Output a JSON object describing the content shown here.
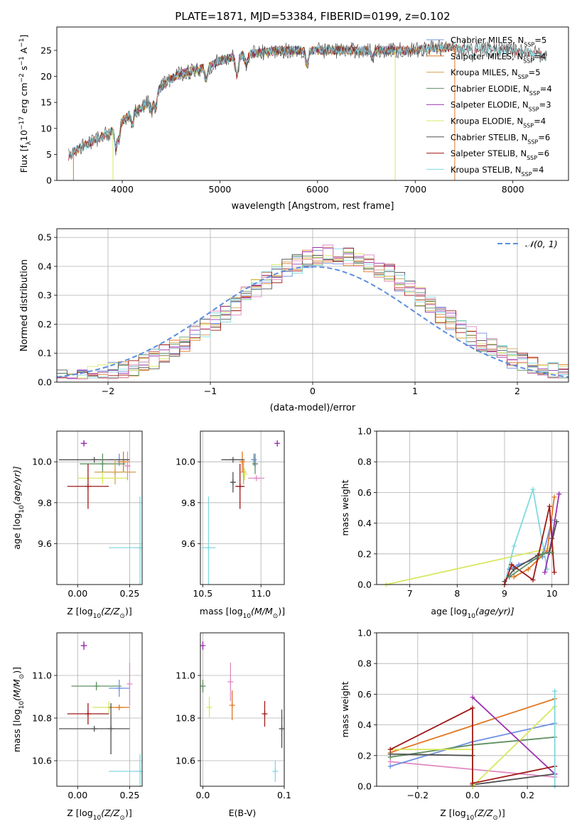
{
  "figure": {
    "title": "PLATE=1871, MJD=53384, FIBERID=0199, z=0.102"
  },
  "colors": {
    "Chabrier MILES": "#6f90e0",
    "Salpeter MILES": "#e07722",
    "Kroupa MILES": "#d4a050",
    "Chabrier ELODIE": "#5f9060",
    "Salpeter ELODIE": "#9a30b0",
    "Kroupa ELODIE": "#d8e860",
    "Chabrier STELIB": "#505050",
    "Salpeter STELIB": "#a01818",
    "Kroupa STELIB": "#80d8e0",
    "extra_pink": "#e088c0",
    "normal": "#5b8ee0"
  },
  "chart_data": [
    {
      "id": "spectrum",
      "type": "line",
      "title": "PLATE=1871, MJD=53384, FIBERID=0199, z=0.102",
      "xlabel": "wavelength [Angstrom, rest frame]",
      "ylabel_main": "Flux [f",
      "ylabel_sub": "λ",
      "ylabel_rest": "10",
      "ylabel_sup": "−17",
      "ylabel_tail": " erg cm",
      "ylabel_sup2": "−2",
      "ylabel_tail2": " s",
      "ylabel_sup3": "−1",
      "ylabel_tail3": " A",
      "ylabel_sup4": "−1",
      "ylabel_end": "]",
      "xlim": [
        3330,
        8570
      ],
      "ylim": [
        0,
        29.5
      ],
      "xticks": [
        "4000",
        "5000",
        "6000",
        "7000",
        "8000"
      ],
      "xtick_values": [
        4000,
        5000,
        6000,
        7000,
        8000
      ],
      "yticks": [
        "0",
        "5",
        "10",
        "15",
        "20",
        "25"
      ],
      "ytick_values": [
        0,
        5,
        10,
        15,
        20,
        25
      ],
      "continuum": [
        [
          3450,
          4.5
        ],
        [
          3500,
          5.5
        ],
        [
          3600,
          6.5
        ],
        [
          3700,
          7.5
        ],
        [
          3800,
          8.5
        ],
        [
          3900,
          9.5
        ],
        [
          4000,
          11.5
        ],
        [
          4100,
          13
        ],
        [
          4200,
          14
        ],
        [
          4300,
          15.5
        ],
        [
          4400,
          18
        ],
        [
          4500,
          19.5
        ],
        [
          4600,
          20.5
        ],
        [
          4700,
          21
        ],
        [
          4800,
          21.5
        ],
        [
          4900,
          22
        ],
        [
          5000,
          23
        ],
        [
          5200,
          24
        ],
        [
          5400,
          24.5
        ],
        [
          5600,
          25
        ],
        [
          5800,
          25
        ],
        [
          6000,
          25
        ],
        [
          6200,
          25
        ],
        [
          6400,
          25
        ],
        [
          6600,
          25
        ],
        [
          6800,
          25
        ],
        [
          7000,
          25
        ],
        [
          7200,
          25.5
        ],
        [
          7400,
          25.5
        ],
        [
          7600,
          25.5
        ],
        [
          7800,
          25
        ],
        [
          8000,
          25
        ],
        [
          8200,
          24.5
        ],
        [
          8350,
          24
        ]
      ],
      "legend": [
        {
          "name": "Chabrier MILES",
          "n": "5"
        },
        {
          "name": "Salpeter MILES",
          "n": "4"
        },
        {
          "name": "Kroupa MILES",
          "n": "5"
        },
        {
          "name": "Chabrier ELODIE",
          "n": "4"
        },
        {
          "name": "Salpeter ELODIE",
          "n": "3"
        },
        {
          "name": "Kroupa ELODIE",
          "n": "4"
        },
        {
          "name": "Chabrier STELIB",
          "n": "6"
        },
        {
          "name": "Salpeter STELIB",
          "n": "6"
        },
        {
          "name": "Kroupa STELIB",
          "n": "4"
        }
      ],
      "legend_sub": "SSP"
    },
    {
      "id": "residuals",
      "type": "line",
      "xlabel": "(data-model)/error",
      "ylabel": "Normed distribution",
      "xlim": [
        -2.5,
        2.5
      ],
      "ylim": [
        0,
        0.53
      ],
      "xticks": [
        "−2",
        "−1",
        "0",
        "1",
        "2"
      ],
      "xtick_values": [
        -2,
        -1,
        0,
        1,
        2
      ],
      "yticks": [
        "0.0",
        "0.1",
        "0.2",
        "0.3",
        "0.4",
        "0.5"
      ],
      "ytick_values": [
        0,
        0.1,
        0.2,
        0.3,
        0.4,
        0.5
      ],
      "normal_label": "𝒩(0, 1)",
      "grid": true,
      "legend_placement": "top-right",
      "bin_width": 0.1
    },
    {
      "id": "age_vs_Z",
      "type": "scatter",
      "xlabel": "Z [log",
      "xlabel_sub": "10",
      "xlabel_rest": "(Z/Z",
      "xlabel_sub2": "⊙",
      "xlabel_end": ")]",
      "ylabel": "age  [log",
      "ylabel_sub": "10",
      "ylabel_rest": "(age/yr)]",
      "xlim": [
        -0.1,
        0.31
      ],
      "ylim": [
        9.4,
        10.15
      ],
      "xticks": [
        "0.00",
        "0.25"
      ],
      "xtick_values": [
        0,
        0.25
      ],
      "yticks": [
        "9.6",
        "9.8",
        "10.0"
      ],
      "ytick_values": [
        9.6,
        9.8,
        10.0
      ],
      "points": [
        {
          "s": "Salpeter ELODIE",
          "x": 0.03,
          "y": 10.09,
          "ex": 0.015,
          "ey": 0.015
        },
        {
          "s": "Chabrier MILES",
          "x": 0.2,
          "y": 10.01,
          "ex": 0.05,
          "ey": 0.03
        },
        {
          "s": "Salpeter MILES",
          "x": 0.22,
          "y": 10.0,
          "ex": 0.03,
          "ey": 0.05
        },
        {
          "s": "extra_pink",
          "x": 0.24,
          "y": 9.98,
          "ex": 0.01,
          "ey": 0.07
        },
        {
          "s": "Chabrier STELIB",
          "x": 0.08,
          "y": 10.01,
          "ex": 0.17,
          "ey": 0.0
        },
        {
          "s": "Chabrier ELODIE",
          "x": 0.12,
          "y": 9.99,
          "ex": 0.11,
          "ey": 0.05
        },
        {
          "s": "Kroupa MILES",
          "x": 0.18,
          "y": 9.95,
          "ex": 0.1,
          "ey": 0.06
        },
        {
          "s": "Kroupa ELODIE",
          "x": 0.12,
          "y": 9.92,
          "ex": 0.12,
          "ey": 0.03
        },
        {
          "s": "Salpeter STELIB",
          "x": 0.05,
          "y": 9.88,
          "ex": 0.1,
          "ey": 0.11
        },
        {
          "s": "Kroupa STELIB",
          "x": 0.3,
          "y": 9.58,
          "ex": 0.15,
          "ey": 0.25
        }
      ]
    },
    {
      "id": "age_vs_mass",
      "type": "scatter",
      "xlabel": "mass [log",
      "xlabel_sub": "10",
      "xlabel_rest": "(M/M",
      "xlabel_sub2": "⊙",
      "xlabel_end": ")]",
      "xlim": [
        10.48,
        11.2
      ],
      "ylim": [
        9.4,
        10.15
      ],
      "xticks": [
        "10.5",
        "11.0"
      ],
      "xtick_values": [
        10.5,
        11.0
      ],
      "yticks": [
        "9.6",
        "9.8",
        "10.0"
      ],
      "ytick_values": [
        9.6,
        9.8,
        10.0
      ],
      "points": [
        {
          "s": "Salpeter ELODIE",
          "x": 11.14,
          "y": 10.09,
          "ex": 0.01,
          "ey": 0.015
        },
        {
          "s": "Chabrier MILES",
          "x": 10.94,
          "y": 10.01,
          "ex": 0.02,
          "ey": 0.03
        },
        {
          "s": "Salpeter MILES",
          "x": 10.84,
          "y": 10.0,
          "ex": 0.01,
          "ey": 0.05
        },
        {
          "s": "Chabrier STELIB",
          "x": 10.76,
          "y": 10.01,
          "ex": 0.1,
          "ey": 0.0
        },
        {
          "s": "Chabrier ELODIE",
          "x": 10.95,
          "y": 9.99,
          "ex": 0.02,
          "ey": 0.05
        },
        {
          "s": "Kroupa MILES",
          "x": 10.85,
          "y": 9.95,
          "ex": 0.01,
          "ey": 0.06
        },
        {
          "s": "Kroupa ELODIE",
          "x": 10.86,
          "y": 9.94,
          "ex": 0.01,
          "ey": 0.03
        },
        {
          "s": "Salpeter STELIB",
          "x": 10.82,
          "y": 9.88,
          "ex": 0.04,
          "ey": 0.11
        },
        {
          "s": "Chabrier STELIB",
          "x": 10.76,
          "y": 9.9,
          "ex": 0.02,
          "ey": 0.05
        },
        {
          "s": "extra_pink",
          "x": 10.96,
          "y": 9.92,
          "ex": 0.07,
          "ey": 0.0
        },
        {
          "s": "Kroupa STELIB",
          "x": 10.55,
          "y": 9.58,
          "ex": 0.06,
          "ey": 0.25
        }
      ]
    },
    {
      "id": "weights_vs_age",
      "type": "line",
      "xlabel": "age  [log",
      "xlabel_sub": "10",
      "xlabel_rest": "(age/yr)]",
      "ylabel": "mass weight",
      "xlim": [
        6.3,
        10.35
      ],
      "ylim": [
        0,
        1.0
      ],
      "xticks": [
        "7",
        "8",
        "9",
        "10"
      ],
      "xtick_values": [
        7,
        8,
        9,
        10
      ],
      "yticks": [
        "0.0",
        "0.2",
        "0.4",
        "0.6",
        "0.8",
        "1.0"
      ],
      "ytick_values": [
        0,
        0.2,
        0.4,
        0.6,
        0.8,
        1.0
      ],
      "grid": true,
      "series": [
        {
          "s": "Kroupa ELODIE",
          "x": [
            6.5,
            10.0
          ],
          "y": [
            0.0,
            0.24
          ]
        },
        {
          "s": "Kroupa STELIB",
          "x": [
            9.0,
            9.2,
            9.6,
            9.9
          ],
          "y": [
            0.0,
            0.25,
            0.62,
            0.1
          ]
        },
        {
          "s": "Chabrier MILES",
          "x": [
            9.1,
            9.3,
            9.8,
            10.0
          ],
          "y": [
            0.1,
            0.13,
            0.18,
            0.42
          ]
        },
        {
          "s": "Salpeter MILES",
          "x": [
            9.2,
            9.5,
            9.9,
            10.05
          ],
          "y": [
            0.05,
            0.1,
            0.22,
            0.57
          ]
        },
        {
          "s": "Salpeter ELODIE",
          "x": [
            9.85,
            10.0,
            10.15
          ],
          "y": [
            0.08,
            0.3,
            0.59
          ]
        },
        {
          "s": "Chabrier STELIB",
          "x": [
            9.0,
            9.2,
            9.7,
            9.95,
            10.1
          ],
          "y": [
            0.02,
            0.1,
            0.19,
            0.21,
            0.41
          ]
        },
        {
          "s": "Salpeter STELIB",
          "x": [
            9.0,
            9.15,
            9.6,
            9.95,
            10.05
          ],
          "y": [
            0.0,
            0.13,
            0.03,
            0.51,
            0.08
          ]
        },
        {
          "s": "Chabrier ELODIE",
          "x": [
            9.1,
            9.8,
            10.0
          ],
          "y": [
            0.05,
            0.2,
            0.21
          ]
        }
      ]
    },
    {
      "id": "mass_vs_Z",
      "type": "scatter",
      "xlabel": "Z [log",
      "xlabel_sub": "10",
      "xlabel_rest": "(Z/Z",
      "xlabel_sub2": "⊙",
      "xlabel_end": ")]",
      "ylabel": "mass [log",
      "ylabel_sub": "10",
      "ylabel_rest": "(M/M",
      "ylabel_sub2": "⊙",
      "ylabel_end": ")]",
      "xlim": [
        -0.1,
        0.31
      ],
      "ylim": [
        10.48,
        11.2
      ],
      "xticks": [
        "0.00",
        "0.25"
      ],
      "xtick_values": [
        0,
        0.25
      ],
      "yticks": [
        "10.6",
        "10.8",
        "11.0"
      ],
      "ytick_values": [
        10.6,
        10.8,
        11.0
      ],
      "points": [
        {
          "s": "Salpeter ELODIE",
          "x": 0.03,
          "y": 11.14,
          "ex": 0.015,
          "ey": 0.02
        },
        {
          "s": "Chabrier ELODIE",
          "x": 0.09,
          "y": 10.95,
          "ex": 0.12,
          "ey": 0.02
        },
        {
          "s": "Chabrier MILES",
          "x": 0.2,
          "y": 10.94,
          "ex": 0.05,
          "ey": 0.04
        },
        {
          "s": "extra_pink",
          "x": 0.25,
          "y": 10.96,
          "ex": 0.0,
          "ey": 0.1
        },
        {
          "s": "Kroupa ELODIE",
          "x": 0.15,
          "y": 10.85,
          "ex": 0.08,
          "ey": 0.03
        },
        {
          "s": "Salpeter MILES",
          "x": 0.2,
          "y": 10.85,
          "ex": 0.05,
          "ey": 0.0
        },
        {
          "s": "Salpeter STELIB",
          "x": 0.05,
          "y": 10.82,
          "ex": 0.1,
          "ey": 0.05
        },
        {
          "s": "Chabrier STELIB",
          "x": 0.08,
          "y": 10.75,
          "ex": 0.17,
          "ey": 0.0
        },
        {
          "s": "Chabrier STELIB",
          "x": 0.16,
          "y": 10.75,
          "ex": 0.0,
          "ey": 0.12
        },
        {
          "s": "Kroupa STELIB",
          "x": 0.3,
          "y": 10.55,
          "ex": 0.15,
          "ey": 0.08
        }
      ]
    },
    {
      "id": "mass_vs_ebv",
      "type": "scatter",
      "xlabel": "E(B-V)",
      "xlim": [
        -0.003,
        0.1
      ],
      "ylim": [
        10.48,
        11.2
      ],
      "xticks": [
        "0.0",
        "0.1"
      ],
      "xtick_values": [
        0,
        0.1
      ],
      "yticks": [
        "10.6",
        "10.8",
        "11.0"
      ],
      "ytick_values": [
        10.6,
        10.8,
        11.0
      ],
      "points": [
        {
          "s": "Salpeter ELODIE",
          "x": 0.0,
          "y": 11.14,
          "ex": 0,
          "ey": 0.02
        },
        {
          "s": "Chabrier ELODIE",
          "x": 0.0,
          "y": 10.95,
          "ex": 0,
          "ey": 0.03
        },
        {
          "s": "Kroupa ELODIE",
          "x": 0.008,
          "y": 10.85,
          "ex": 0,
          "ey": 0.05
        },
        {
          "s": "extra_pink",
          "x": 0.034,
          "y": 10.97,
          "ex": 0,
          "ey": 0.09
        },
        {
          "s": "Salpeter MILES",
          "x": 0.036,
          "y": 10.86,
          "ex": 0,
          "ey": 0.07
        },
        {
          "s": "Salpeter STELIB",
          "x": 0.076,
          "y": 10.82,
          "ex": 0,
          "ey": 0.06
        },
        {
          "s": "Chabrier STELIB",
          "x": 0.097,
          "y": 10.75,
          "ex": 0,
          "ey": 0.09
        },
        {
          "s": "Kroupa STELIB",
          "x": 0.089,
          "y": 10.55,
          "ex": 0,
          "ey": 0.05
        }
      ]
    },
    {
      "id": "weights_vs_Z",
      "type": "line",
      "xlabel": "Z [log",
      "xlabel_sub": "10",
      "xlabel_rest": "(Z/Z",
      "xlabel_sub2": "⊙",
      "xlabel_end": ")]",
      "ylabel": "mass weight",
      "xlim": [
        -0.35,
        0.35
      ],
      "ylim": [
        0,
        1.0
      ],
      "xticks": [
        "−0.2",
        "0.0",
        "0.2"
      ],
      "xtick_values": [
        -0.2,
        0.0,
        0.2
      ],
      "yticks": [
        "0.0",
        "0.2",
        "0.4",
        "0.6",
        "0.8",
        "1.0"
      ],
      "ytick_values": [
        0,
        0.2,
        0.4,
        0.6,
        0.8,
        1.0
      ],
      "grid": true,
      "series": [
        {
          "s": "extra_pink",
          "x": [
            -0.3,
            0.3
          ],
          "y": [
            0.16,
            0.06
          ]
        },
        {
          "s": "Salpeter MILES",
          "x": [
            -0.3,
            0.3
          ],
          "y": [
            0.22,
            0.57
          ]
        },
        {
          "s": "Chabrier MILES",
          "x": [
            -0.3,
            0.0,
            0.3
          ],
          "y": [
            0.13,
            0.29,
            0.41
          ]
        },
        {
          "s": "Chabrier ELODIE",
          "x": [
            -0.3,
            0.0,
            0.3
          ],
          "y": [
            0.19,
            0.27,
            0.32
          ]
        },
        {
          "s": "Chabrier STELIB",
          "x": [
            -0.3,
            0.0,
            0.0,
            0.3
          ],
          "y": [
            0.21,
            0.2,
            0.01,
            0.08
          ]
        },
        {
          "s": "Kroupa ELODIE",
          "x": [
            -0.3,
            0.0,
            0.0,
            0.3
          ],
          "y": [
            0.24,
            0.24,
            0.0,
            0.52
          ]
        },
        {
          "s": "Salpeter ELODIE",
          "x": [
            0.0,
            0.3
          ],
          "y": [
            0.58,
            0.08
          ]
        },
        {
          "s": "Salpeter STELIB",
          "x": [
            -0.3,
            0.0,
            0.0,
            0.3
          ],
          "y": [
            0.24,
            0.51,
            0.02,
            0.13
          ]
        },
        {
          "s": "Kroupa STELIB",
          "x": [
            0.3,
            0.3
          ],
          "y": [
            0.0,
            0.62
          ]
        }
      ]
    }
  ]
}
